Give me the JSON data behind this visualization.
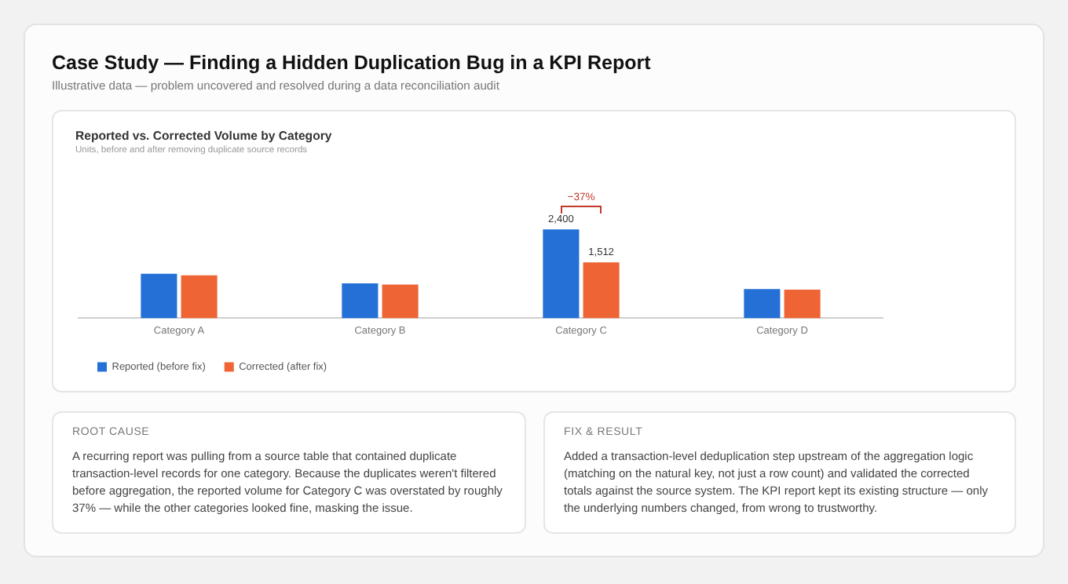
{
  "chart_data": [
    {
      "type": "other",
      "title": "Case Study — Finding a Hidden Duplication Bug in a KPI Report",
      "subtitle": "Illustrative data — problem uncovered and resolved during a data reconciliation audit"
    },
    {
      "type": "bar",
      "title": "Reported vs. Corrected Volume by Category",
      "subtitle": "Units, before and after removing duplicate source records",
      "categories": [
        "Category A",
        "Category B",
        "Category C",
        "Category D"
      ],
      "series": [
        {
          "name": "Reported (before fix)",
          "color": "#2470d6",
          "values": [
            1200,
            940,
            2400,
            790
          ],
          "value_labels": [
            null,
            null,
            "2,400",
            null
          ]
        },
        {
          "name": "Corrected (after fix)",
          "color": "#ee6434",
          "values": [
            1160,
            910,
            1512,
            770
          ],
          "value_labels": [
            null,
            null,
            "1,512",
            null
          ]
        }
      ],
      "annotations": [
        "−37%"
      ],
      "grid": false,
      "legend": "bottom left"
    },
    {
      "type": "other",
      "title": "ROOT CAUSE",
      "annotations": [
        "A recurring report was pulling from a source table that contained duplicate transaction-level records for one category. Because the duplicates weren't filtered before aggregation, the reported volume for Category C was overstated by roughly 37% — while the other categories looked fine, masking the issue."
      ]
    },
    {
      "type": "other",
      "title": "FIX & RESULT",
      "annotations": [
        "Added a transaction-level deduplication step upstream of the aggregation logic (matching on the natural key, not just a row count) and validated the corrected totals against the source system. The KPI report kept its existing structure — only the underlying numbers changed, from wrong to trustworthy."
      ]
    }
  ]
}
